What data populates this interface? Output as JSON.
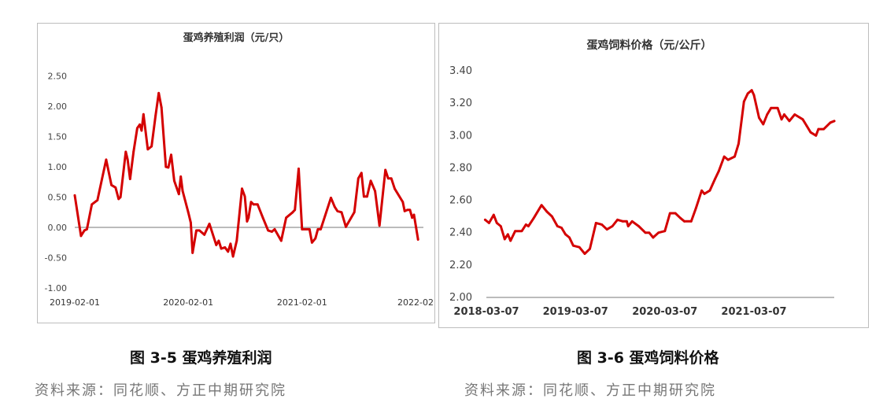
{
  "chart_data": [
    {
      "type": "line",
      "title": "蛋鸡养殖利润（元/只）",
      "caption": "图 3-5 蛋鸡养殖利润",
      "source": "资料来源：同花顺、方正中期研究院",
      "ylim": [
        -1.0,
        2.5
      ],
      "yticks": [
        "2.50",
        "2.00",
        "1.50",
        "1.00",
        "0.50",
        "0.00",
        "-0.50",
        "-1.00"
      ],
      "ytick_values": [
        2.5,
        2.0,
        1.5,
        1.0,
        0.5,
        0.0,
        -0.5,
        -1.0
      ],
      "xticks": [
        "2019-02-01",
        "2020-02-01",
        "2021-02-01",
        "2022-02"
      ],
      "zero_line": true,
      "grid": false,
      "color": "#d40000",
      "x": [
        "2019-02-01",
        "2019-02-21",
        "2019-03-04",
        "2019-03-12",
        "2019-03-28",
        "2019-04-15",
        "2019-05-13",
        "2019-05-30",
        "2019-06-12",
        "2019-06-22",
        "2019-06-28",
        "2019-07-15",
        "2019-07-21",
        "2019-07-29",
        "2019-08-09",
        "2019-08-21",
        "2019-08-29",
        "2019-09-04",
        "2019-09-10",
        "2019-09-24",
        "2019-10-06",
        "2019-10-19",
        "2019-10-29",
        "2019-11-07",
        "2019-11-21",
        "2019-11-29",
        "2019-12-08",
        "2019-12-18",
        "2020-01-02",
        "2020-01-08",
        "2020-01-14",
        "2020-02-01",
        "2020-02-09",
        "2020-02-15",
        "2020-02-27",
        "2020-03-08",
        "2020-03-24",
        "2020-04-09",
        "2020-05-01",
        "2020-05-09",
        "2020-05-17",
        "2020-05-29",
        "2020-06-08",
        "2020-06-16",
        "2020-06-24",
        "2020-07-06",
        "2020-07-23",
        "2020-08-01",
        "2020-08-08",
        "2020-08-13",
        "2020-08-21",
        "2020-08-29",
        "2020-09-11",
        "2020-09-28",
        "2020-10-15",
        "2020-10-27",
        "2020-11-05",
        "2020-11-26",
        "2020-12-12",
        "2021-01-02",
        "2021-01-09",
        "2021-01-21",
        "2021-02-01",
        "2021-02-25",
        "2021-03-05",
        "2021-03-16",
        "2021-03-24",
        "2021-04-02",
        "2021-05-05",
        "2021-05-17",
        "2021-05-26",
        "2021-06-08",
        "2021-06-22",
        "2021-07-19",
        "2021-08-01",
        "2021-08-11",
        "2021-08-19",
        "2021-08-29",
        "2021-09-10",
        "2021-09-24",
        "2021-10-08",
        "2021-10-27",
        "2021-11-05",
        "2021-11-15",
        "2021-11-26",
        "2021-12-22",
        "2021-12-28",
        "2022-01-06",
        "2022-01-14",
        "2022-01-21",
        "2022-01-27",
        "2022-02-09"
      ],
      "y": [
        0.53,
        -0.14,
        -0.05,
        -0.03,
        0.38,
        0.45,
        1.12,
        0.7,
        0.66,
        0.47,
        0.5,
        1.25,
        1.12,
        0.8,
        1.25,
        1.64,
        1.7,
        1.6,
        1.87,
        1.29,
        1.34,
        1.85,
        2.22,
        1.98,
        1.0,
        0.99,
        1.2,
        0.77,
        0.55,
        0.84,
        0.6,
        0.25,
        0.08,
        -0.42,
        -0.05,
        -0.05,
        -0.12,
        0.06,
        -0.29,
        -0.22,
        -0.35,
        -0.33,
        -0.4,
        -0.27,
        -0.48,
        -0.22,
        0.64,
        0.51,
        0.1,
        0.16,
        0.42,
        0.38,
        0.38,
        0.16,
        -0.05,
        -0.07,
        -0.03,
        -0.22,
        0.16,
        0.25,
        0.29,
        0.97,
        -0.03,
        -0.03,
        -0.25,
        -0.18,
        -0.03,
        -0.03,
        0.49,
        0.34,
        0.27,
        0.25,
        0.01,
        0.25,
        0.81,
        0.9,
        0.51,
        0.51,
        0.77,
        0.6,
        0.03,
        0.95,
        0.81,
        0.81,
        0.64,
        0.42,
        0.27,
        0.29,
        0.29,
        0.16,
        0.21,
        -0.2
      ]
    },
    {
      "type": "line",
      "title": "蛋鸡饲料价格（元/公斤）",
      "caption": "图 3-6 蛋鸡饲料价格",
      "source": "资料来源：同花顺、方正中期研究院",
      "ylim": [
        2.0,
        3.4
      ],
      "yticks": [
        "3.40",
        "3.20",
        "3.00",
        "2.80",
        "2.60",
        "2.40",
        "2.20",
        "2.00"
      ],
      "ytick_values": [
        3.4,
        3.2,
        3.0,
        2.8,
        2.6,
        2.4,
        2.2,
        2.0
      ],
      "xticks": [
        "2018-03-07",
        "2019-03-07",
        "2020-03-07",
        "2021-03-07"
      ],
      "grid": false,
      "color": "#d40000",
      "x": [
        "2018-03-02",
        "2018-03-18",
        "2018-04-06",
        "2018-04-19",
        "2018-05-05",
        "2018-05-21",
        "2018-06-03",
        "2018-06-14",
        "2018-07-03",
        "2018-07-30",
        "2018-08-16",
        "2018-08-26",
        "2018-09-17",
        "2018-10-19",
        "2018-11-10",
        "2018-12-01",
        "2018-12-23",
        "2019-01-09",
        "2019-01-25",
        "2019-02-10",
        "2019-02-26",
        "2019-03-23",
        "2019-04-14",
        "2019-05-05",
        "2019-05-30",
        "2019-06-23",
        "2019-07-14",
        "2019-08-05",
        "2019-08-26",
        "2019-09-17",
        "2019-10-03",
        "2019-10-09",
        "2019-10-25",
        "2019-11-21",
        "2019-12-18",
        "2020-01-03",
        "2020-01-19",
        "2020-02-10",
        "2020-03-07",
        "2020-03-28",
        "2020-04-19",
        "2020-05-10",
        "2020-05-26",
        "2020-06-23",
        "2020-07-12",
        "2020-08-05",
        "2020-08-16",
        "2020-09-07",
        "2020-09-28",
        "2020-10-14",
        "2020-11-05",
        "2020-11-21",
        "2020-12-18",
        "2021-01-03",
        "2021-01-25",
        "2021-02-10",
        "2021-02-26",
        "2021-03-07",
        "2021-03-28",
        "2021-04-14",
        "2021-04-30",
        "2021-05-16",
        "2021-06-12",
        "2021-06-28",
        "2021-07-09",
        "2021-07-30",
        "2021-08-21",
        "2021-09-23",
        "2021-10-09",
        "2021-10-25",
        "2021-11-16",
        "2021-11-26",
        "2021-12-18",
        "2022-01-14",
        "2022-01-30"
      ],
      "y": [
        2.48,
        2.46,
        2.51,
        2.46,
        2.44,
        2.36,
        2.39,
        2.35,
        2.41,
        2.41,
        2.45,
        2.44,
        2.49,
        2.57,
        2.53,
        2.5,
        2.44,
        2.43,
        2.39,
        2.37,
        2.32,
        2.31,
        2.27,
        2.3,
        2.46,
        2.45,
        2.42,
        2.44,
        2.48,
        2.47,
        2.47,
        2.44,
        2.47,
        2.44,
        2.4,
        2.4,
        2.37,
        2.4,
        2.41,
        2.52,
        2.52,
        2.49,
        2.47,
        2.47,
        2.55,
        2.66,
        2.64,
        2.66,
        2.73,
        2.78,
        2.87,
        2.85,
        2.87,
        2.95,
        3.21,
        3.26,
        3.28,
        3.25,
        3.11,
        3.07,
        3.13,
        3.17,
        3.17,
        3.1,
        3.13,
        3.09,
        3.13,
        3.1,
        3.06,
        3.02,
        3.0,
        3.04,
        3.04,
        3.08,
        3.09
      ]
    }
  ]
}
